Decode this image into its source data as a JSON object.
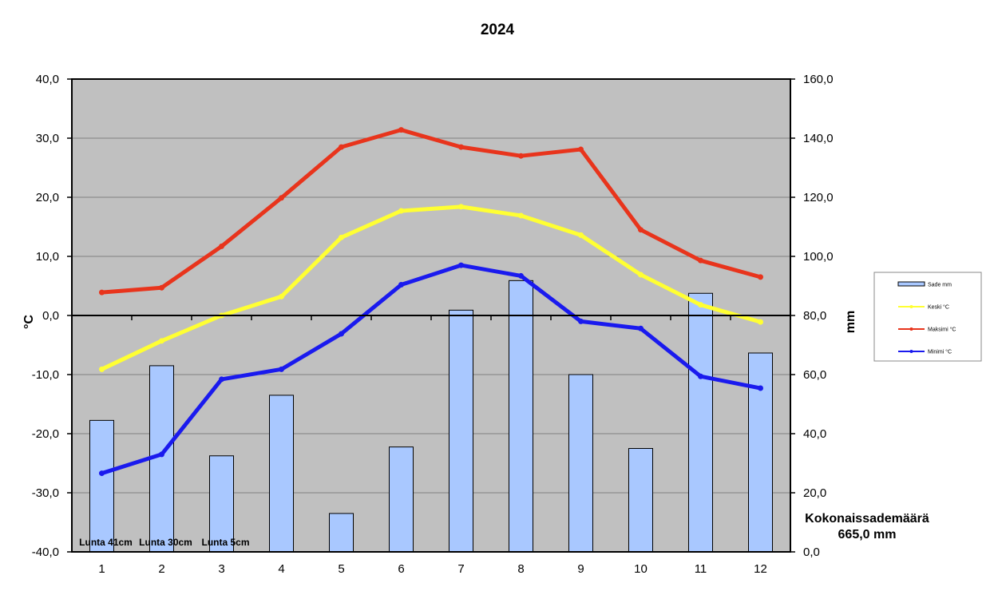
{
  "chart_data": {
    "type": "bar+line",
    "title": "2024",
    "categories": [
      "1",
      "2",
      "3",
      "4",
      "5",
      "6",
      "7",
      "8",
      "9",
      "10",
      "11",
      "12"
    ],
    "y_left": {
      "label": "°C",
      "lim": [
        -40,
        40
      ],
      "ticks": [
        "-40,0",
        "-30,0",
        "-20,0",
        "-10,0",
        "0,0",
        "10,0",
        "20,0",
        "30,0",
        "40,0"
      ]
    },
    "y_right": {
      "label": "mm",
      "lim": [
        0,
        160
      ],
      "ticks": [
        "0,0",
        "20,0",
        "40,0",
        "60,0",
        "80,0",
        "100,0",
        "120,0",
        "140,0",
        "160,0"
      ]
    },
    "grid": true,
    "legend_position": "right",
    "bar_series": {
      "name": "Sade mm",
      "axis": "right",
      "color": "#a9c8ff",
      "values": [
        44.5,
        63,
        32.5,
        53,
        13,
        35.5,
        81.8,
        91.8,
        60,
        35,
        87.5,
        67.3
      ]
    },
    "line_series": [
      {
        "name": "Keski °C",
        "color": "#ffff33",
        "values": [
          -9.1,
          -4.3,
          0,
          3.2,
          13.2,
          17.7,
          18.4,
          16.9,
          13.6,
          6.9,
          1.8,
          -1.1
        ]
      },
      {
        "name": "Maksimi °C",
        "color": "#e8341c",
        "values": [
          3.9,
          4.7,
          11.7,
          19.9,
          28.5,
          31.4,
          28.5,
          27.0,
          28.1,
          14.5,
          9.3,
          6.5
        ]
      },
      {
        "name": "Minimi °C",
        "color": "#1a1aee",
        "values": [
          -26.7,
          -23.5,
          -10.8,
          -9.1,
          -3.1,
          5.2,
          8.5,
          6.7,
          -1,
          -2.2,
          -10.3,
          -12.3
        ]
      }
    ],
    "annotations": {
      "snow": [
        {
          "month": "1",
          "text": "Lunta 41cm"
        },
        {
          "month": "2",
          "text": "Lunta 30cm"
        },
        {
          "month": "3",
          "text": "Lunta 5cm"
        }
      ],
      "total_label": "Kokonaissademäärä",
      "total_value": "665,0 mm"
    }
  }
}
